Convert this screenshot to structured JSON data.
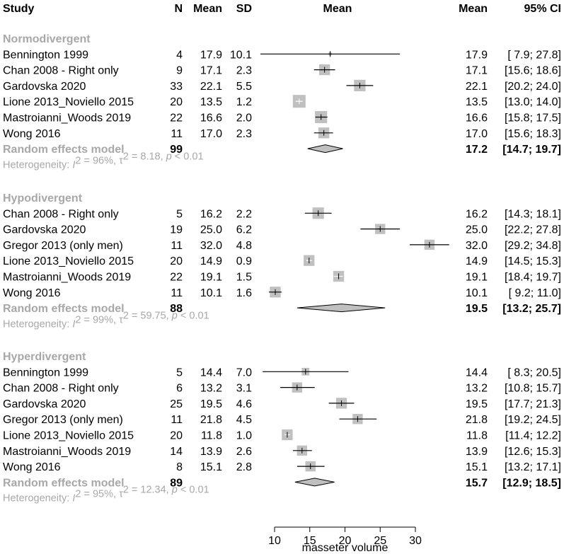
{
  "chart_data": {
    "type": "forest",
    "headers": {
      "study": "Study",
      "n": "N",
      "mean": "Mean",
      "sd": "SD",
      "plot_mean": "Mean",
      "mean_value": "Mean",
      "ci": "95% CI"
    },
    "xlabel": "masseter volume",
    "xlim": [
      10,
      30
    ],
    "ticks": [
      10,
      15,
      20,
      25,
      30
    ],
    "groups": [
      {
        "name": "Normodivergent",
        "studies": [
          {
            "study": "Bennington 1999",
            "n": "4",
            "mean": "17.9",
            "sd": "10.1",
            "est": 17.9,
            "lo": 7.9,
            "hi": 27.8,
            "ci": "[ 7.9; 27.8]",
            "weight": 0.25
          },
          {
            "study": "Chan 2008 - Right only",
            "n": "9",
            "mean": "17.1",
            "sd": "2.3",
            "est": 17.1,
            "lo": 15.6,
            "hi": 18.6,
            "ci": "[15.6; 18.6]",
            "weight": 0.85
          },
          {
            "study": "Gardovska 2020",
            "n": "33",
            "mean": "22.1",
            "sd": "5.5",
            "est": 22.1,
            "lo": 20.2,
            "hi": 24.0,
            "ci": "[20.2; 24.0]",
            "weight": 0.9
          },
          {
            "study": "Lione 2013_Noviello 2015",
            "n": "20",
            "mean": "13.5",
            "sd": "1.2",
            "est": 13.5,
            "lo": 13.0,
            "hi": 14.0,
            "ci": "[13.0; 14.0]",
            "weight": 1.0
          },
          {
            "study": "Mastroianni_Woods 2019",
            "n": "22",
            "mean": "16.6",
            "sd": "2.0",
            "est": 16.6,
            "lo": 15.8,
            "hi": 17.5,
            "ci": "[15.8; 17.5]",
            "weight": 0.95
          },
          {
            "study": "Wong 2016",
            "n": "11",
            "mean": "17.0",
            "sd": "2.3",
            "est": 17.0,
            "lo": 15.6,
            "hi": 18.3,
            "ci": "[15.6; 18.3]",
            "weight": 0.85
          }
        ],
        "random": {
          "label": "Random effects model",
          "n": "99",
          "est": 17.2,
          "lo": 14.7,
          "hi": 19.7,
          "mean": "17.2",
          "ci": "[14.7; 19.7]"
        },
        "heterogeneity": {
          "prefix": "Heterogeneity: ",
          "i2": "I",
          "i2_value": " = 96%, ",
          "tau": "τ",
          "tau_value": " = 8.18, ",
          "p": "p",
          "p_value": " < 0.01",
          "sup": "2"
        }
      },
      {
        "name": "Hypodivergent",
        "studies": [
          {
            "study": "Chan 2008 - Right only",
            "n": "5",
            "mean": "16.2",
            "sd": "2.2",
            "est": 16.2,
            "lo": 14.3,
            "hi": 18.1,
            "ci": "[14.3; 18.1]",
            "weight": 0.9
          },
          {
            "study": "Gardovska 2020",
            "n": "19",
            "mean": "25.0",
            "sd": "6.2",
            "est": 25.0,
            "lo": 22.2,
            "hi": 27.8,
            "ci": "[22.2; 27.8]",
            "weight": 0.8
          },
          {
            "study": "Gregor 2013 (only men)",
            "n": "11",
            "mean": "32.0",
            "sd": "4.8",
            "est": 32.0,
            "lo": 29.2,
            "hi": 34.8,
            "ci": "[29.2; 34.8]",
            "weight": 0.8
          },
          {
            "study": "Lione 2013_Noviello 2015",
            "n": "20",
            "mean": "14.9",
            "sd": "0.9",
            "est": 14.9,
            "lo": 14.5,
            "hi": 15.3,
            "ci": "[14.5; 15.3]",
            "weight": 0.85
          },
          {
            "study": "Mastroianni_Woods 2019",
            "n": "22",
            "mean": "19.1",
            "sd": "1.5",
            "est": 19.1,
            "lo": 18.4,
            "hi": 19.7,
            "ci": "[18.4; 19.7]",
            "weight": 0.85
          },
          {
            "study": "Wong 2016",
            "n": "11",
            "mean": "10.1",
            "sd": "1.6",
            "est": 10.1,
            "lo": 9.2,
            "hi": 11.0,
            "ci": "[ 9.2; 11.0]",
            "weight": 0.85
          }
        ],
        "random": {
          "label": "Random effects model",
          "n": "88",
          "est": 19.5,
          "lo": 13.2,
          "hi": 25.7,
          "mean": "19.5",
          "ci": "[13.2; 25.7]"
        },
        "heterogeneity": {
          "prefix": "Heterogeneity: ",
          "i2": "I",
          "i2_value": " = 99%, ",
          "tau": "τ",
          "tau_value": " = 59.75, ",
          "p": "p",
          "p_value": " < 0.01",
          "sup": "2"
        }
      },
      {
        "name": "Hyperdivergent",
        "studies": [
          {
            "study": "Bennington 1999",
            "n": "5",
            "mean": "14.4",
            "sd": "7.0",
            "est": 14.4,
            "lo": 8.3,
            "hi": 20.5,
            "ci": "[ 8.3; 20.5]",
            "weight": 0.6
          },
          {
            "study": "Chan 2008 - Right only",
            "n": "6",
            "mean": "13.2",
            "sd": "3.1",
            "est": 13.2,
            "lo": 10.8,
            "hi": 15.7,
            "ci": "[10.8; 15.7]",
            "weight": 0.8
          },
          {
            "study": "Gardovska 2020",
            "n": "25",
            "mean": "19.5",
            "sd": "4.6",
            "est": 19.5,
            "lo": 17.7,
            "hi": 21.3,
            "ci": "[17.7; 21.3]",
            "weight": 0.85
          },
          {
            "study": "Gregor 2013 (only men)",
            "n": "11",
            "mean": "21.8",
            "sd": "4.5",
            "est": 21.8,
            "lo": 19.2,
            "hi": 24.5,
            "ci": "[19.2; 24.5]",
            "weight": 0.8
          },
          {
            "study": "Lione 2013_Noviello 2015",
            "n": "20",
            "mean": "11.8",
            "sd": "1.0",
            "est": 11.8,
            "lo": 11.4,
            "hi": 12.2,
            "ci": "[11.4; 12.2]",
            "weight": 0.85
          },
          {
            "study": "Mastroianni_Woods 2019",
            "n": "14",
            "mean": "13.9",
            "sd": "2.6",
            "est": 13.9,
            "lo": 12.6,
            "hi": 15.3,
            "ci": "[12.6; 15.3]",
            "weight": 0.8
          },
          {
            "study": "Wong 2016",
            "n": "8",
            "mean": "15.1",
            "sd": "2.8",
            "est": 15.1,
            "lo": 13.2,
            "hi": 17.1,
            "ci": "[13.2; 17.1]",
            "weight": 0.8
          }
        ],
        "random": {
          "label": "Random effects model",
          "n": "89",
          "est": 15.7,
          "lo": 12.9,
          "hi": 18.5,
          "mean": "15.7",
          "ci": "[12.9; 18.5]"
        },
        "heterogeneity": {
          "prefix": "Heterogeneity: ",
          "i2": "I",
          "i2_value": " = 95%, ",
          "tau": "τ",
          "tau_value": " = 12.34, ",
          "p": "p",
          "p_value": " < 0.01",
          "sup": "2"
        }
      }
    ]
  }
}
